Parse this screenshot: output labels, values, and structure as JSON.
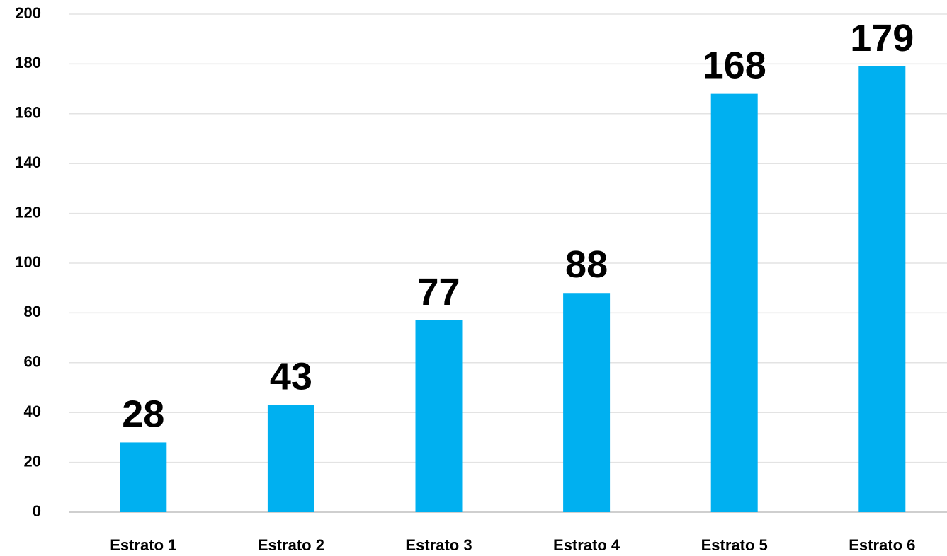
{
  "chart_data": {
    "type": "bar",
    "categories": [
      "Estrato 1",
      "Estrato 2",
      "Estrato 3",
      "Estrato 4",
      "Estrato 5",
      "Estrato 6"
    ],
    "values": [
      28,
      43,
      77,
      88,
      168,
      179
    ],
    "color": "#00b0f0",
    "ylim": [
      0,
      200
    ],
    "yticks": [
      0,
      20,
      40,
      60,
      80,
      100,
      120,
      140,
      160,
      180,
      200
    ],
    "grid": true
  }
}
